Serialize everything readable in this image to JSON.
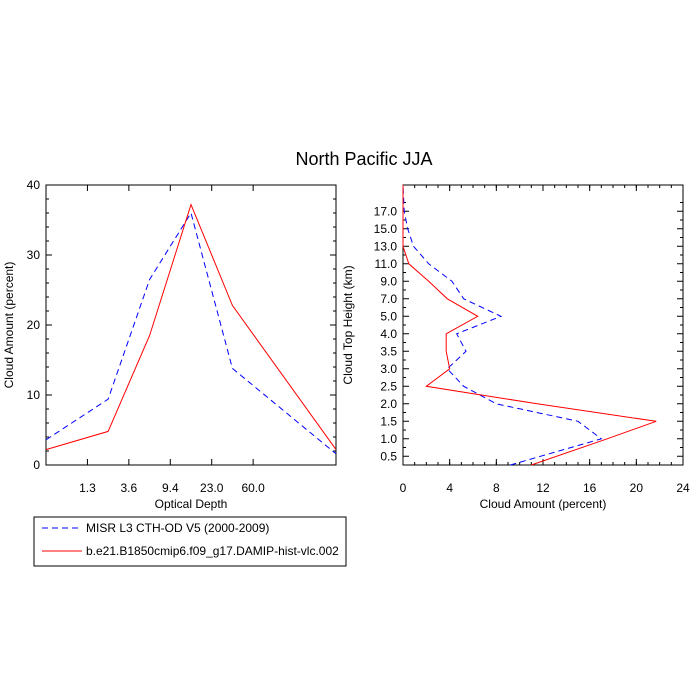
{
  "chart_data": [
    {
      "type": "line",
      "panel": "left",
      "title": "North Pacific JJA",
      "xlabel": "Optical Depth",
      "ylabel": "Cloud Amount (percent)",
      "ylim": [
        0,
        40
      ],
      "yticks": [
        "0",
        "10",
        "20",
        "30",
        "40"
      ],
      "xticks": [
        "1.3",
        "3.6",
        "9.4",
        "23.0",
        "60.0"
      ],
      "x_bins": 7,
      "series": [
        {
          "name": "MISR L3 CTH-OD V5 (2000-2009)",
          "style": "dashed",
          "color": "#0000ff",
          "values": [
            3.6,
            9.4,
            26.5,
            36.0,
            13.8,
            1.6
          ]
        },
        {
          "name": "b.e21.B1850cmip6.f09_g17.DAMIP-hist-vlc.002",
          "style": "solid",
          "color": "#ff0000",
          "values": [
            2.2,
            4.8,
            18.5,
            37.2,
            22.8,
            2.2
          ]
        }
      ]
    },
    {
      "type": "line",
      "panel": "right",
      "xlabel": "Cloud Amount (percent)",
      "ylabel": "Cloud Top Height (km)",
      "xlim": [
        0,
        24
      ],
      "xticks": [
        "0",
        "4",
        "8",
        "12",
        "16",
        "20",
        "24"
      ],
      "yticks": [
        "0.5",
        "1.0",
        "1.5",
        "2.0",
        "2.5",
        "3.0",
        "3.5",
        "4.0",
        "5.0",
        "7.0",
        "9.0",
        "11.0",
        "13.0",
        "15.0",
        "17.0"
      ],
      "series": [
        {
          "name": "MISR L3 CTH-OD V5 (2000-2009)",
          "style": "dashed",
          "color": "#0000ff",
          "values": [
            9.2,
            17.0,
            15.0,
            8.0,
            5.2,
            3.8,
            5.4,
            4.6,
            8.4,
            5.2,
            4.2,
            2.2,
            0.9,
            0.4,
            0.1,
            0.0
          ]
        },
        {
          "name": "b.e21.B1850cmip6.f09_g17.DAMIP-hist-vlc.002",
          "style": "solid",
          "color": "#ff0000",
          "values": [
            11.0,
            17.5,
            21.7,
            11.5,
            2.0,
            4.0,
            3.7,
            3.7,
            6.4,
            3.8,
            2.2,
            0.5,
            0.0,
            0.0,
            0.0,
            0.0
          ]
        }
      ]
    }
  ],
  "legend": {
    "entries": [
      {
        "label": "MISR L3 CTH-OD V5 (2000-2009)",
        "style": "dashed",
        "color": "#0000ff"
      },
      {
        "label": "b.e21.B1850cmip6.f09_g17.DAMIP-hist-vlc.002",
        "style": "solid",
        "color": "#ff0000"
      }
    ]
  }
}
